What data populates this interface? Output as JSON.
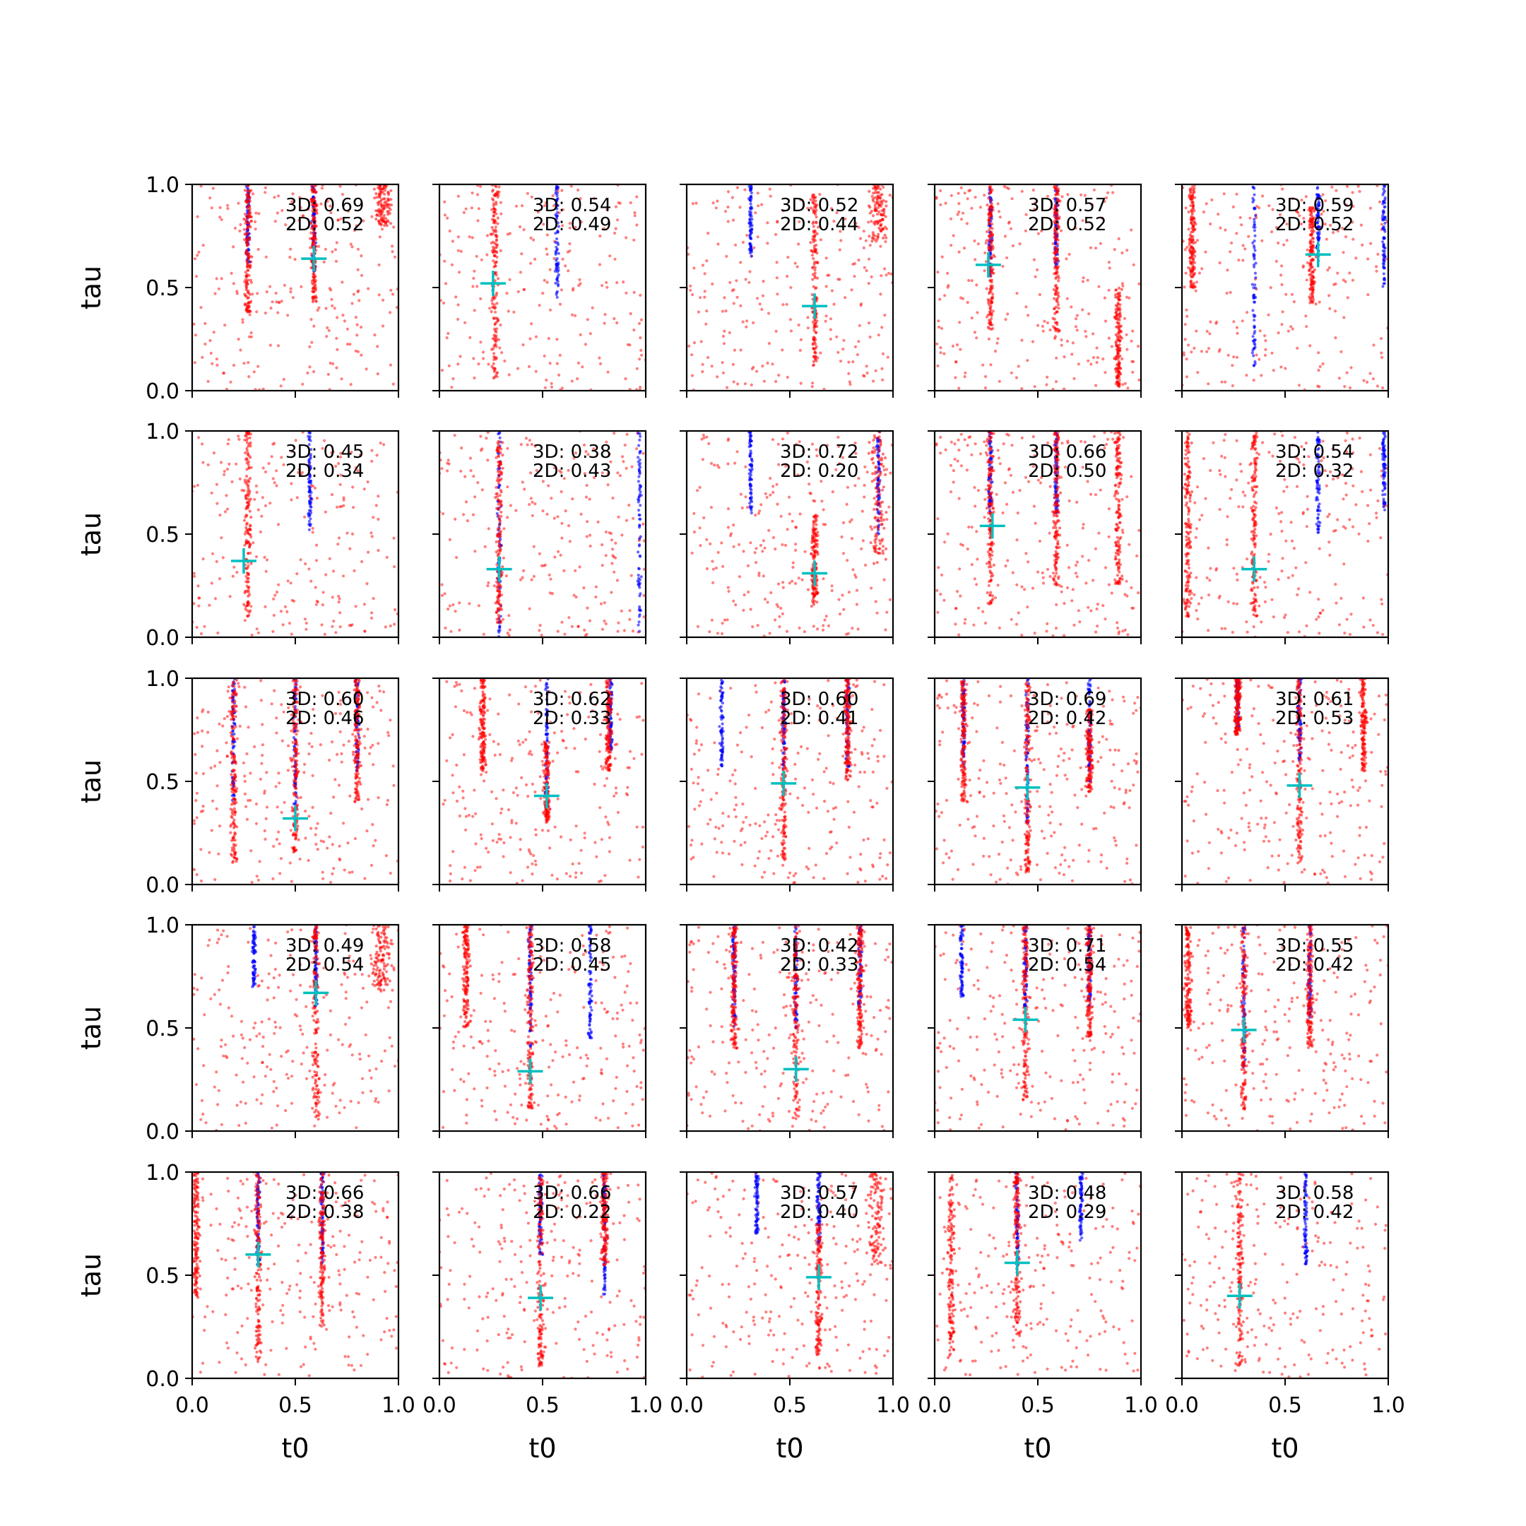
{
  "chart_data": {
    "type": "scatter",
    "layout": "5x5 grid of subplots",
    "xlabel": "t0",
    "ylabel": "tau",
    "xlim": [
      0.0,
      1.0
    ],
    "ylim": [
      0.0,
      1.0
    ],
    "xticks": [
      "0.0",
      "0.5",
      "1.0"
    ],
    "yticks": [
      "0.0",
      "0.5",
      "1.0"
    ],
    "grid": false,
    "colors": {
      "series_a": "#ff0000",
      "series_b": "#0000ff",
      "marker": "#00bfbf"
    },
    "marker_style": "plus",
    "panels": [
      {
        "row": 1,
        "col": 1,
        "score_3d": "0.69",
        "score_2d": "0.52",
        "marker": [
          0.59,
          0.64
        ],
        "red_bands": [
          [
            0.27,
            0.38,
            1.0
          ],
          [
            0.59,
            0.43,
            1.0
          ]
        ],
        "blue_bands": [
          [
            0.27,
            0.62,
            1.0
          ],
          [
            0.59,
            0.58,
            1.0
          ]
        ],
        "red_cluster": [
          0.92,
          0.8,
          1.0
        ]
      },
      {
        "row": 1,
        "col": 2,
        "score_3d": "0.54",
        "score_2d": "0.49",
        "marker": [
          0.26,
          0.52
        ],
        "red_bands": [
          [
            0.27,
            0.06,
            1.0
          ]
        ],
        "blue_bands": [
          [
            0.57,
            0.45,
            1.0
          ]
        ],
        "red_cluster": null
      },
      {
        "row": 1,
        "col": 3,
        "score_3d": "0.52",
        "score_2d": "0.44",
        "marker": [
          0.62,
          0.41
        ],
        "red_bands": [
          [
            0.62,
            0.12,
            0.95
          ]
        ],
        "blue_bands": [
          [
            0.31,
            0.65,
            1.0
          ]
        ],
        "red_cluster": [
          0.93,
          0.72,
          1.0
        ]
      },
      {
        "row": 1,
        "col": 4,
        "score_3d": "0.57",
        "score_2d": "0.52",
        "marker": [
          0.26,
          0.61
        ],
        "red_bands": [
          [
            0.27,
            0.28,
            1.0
          ],
          [
            0.59,
            0.25,
            1.0
          ],
          [
            0.89,
            0.02,
            0.5
          ]
        ],
        "blue_bands": [
          [
            0.27,
            0.55,
            1.0
          ],
          [
            0.59,
            0.6,
            1.0
          ]
        ],
        "red_cluster": null
      },
      {
        "row": 1,
        "col": 5,
        "score_3d": "0.59",
        "score_2d": "0.52",
        "marker": [
          0.66,
          0.66
        ],
        "red_bands": [
          [
            0.05,
            0.5,
            1.0
          ],
          [
            0.63,
            0.42,
            0.9
          ]
        ],
        "blue_bands": [
          [
            0.35,
            0.12,
            1.0
          ],
          [
            0.66,
            0.62,
            1.0
          ],
          [
            0.98,
            0.5,
            1.0
          ]
        ],
        "red_cluster": null
      },
      {
        "row": 2,
        "col": 1,
        "score_3d": "0.45",
        "score_2d": "0.34",
        "marker": [
          0.25,
          0.37
        ],
        "red_bands": [
          [
            0.27,
            0.1,
            1.0
          ]
        ],
        "blue_bands": [
          [
            0.57,
            0.52,
            1.0
          ]
        ],
        "red_cluster": null
      },
      {
        "row": 2,
        "col": 2,
        "score_3d": "0.38",
        "score_2d": "0.43",
        "marker": [
          0.29,
          0.33
        ],
        "red_bands": [
          [
            0.29,
            0.05,
            0.95
          ]
        ],
        "blue_bands": [
          [
            0.29,
            0.0,
            1.0
          ],
          [
            0.97,
            0.0,
            1.0
          ]
        ],
        "red_cluster": null
      },
      {
        "row": 2,
        "col": 3,
        "score_3d": "0.72",
        "score_2d": "0.20",
        "marker": [
          0.62,
          0.31
        ],
        "red_bands": [
          [
            0.62,
            0.15,
            0.6
          ]
        ],
        "blue_bands": [
          [
            0.31,
            0.6,
            1.0
          ],
          [
            0.93,
            0.5,
            1.0
          ]
        ],
        "red_cluster": [
          0.93,
          0.35,
          1.0
        ]
      },
      {
        "row": 2,
        "col": 4,
        "score_3d": "0.66",
        "score_2d": "0.50",
        "marker": [
          0.28,
          0.54
        ],
        "red_bands": [
          [
            0.27,
            0.15,
            1.0
          ],
          [
            0.59,
            0.25,
            1.0
          ],
          [
            0.89,
            0.25,
            1.0
          ]
        ],
        "blue_bands": [
          [
            0.27,
            0.6,
            1.0
          ],
          [
            0.59,
            0.6,
            1.0
          ]
        ],
        "red_cluster": null
      },
      {
        "row": 2,
        "col": 5,
        "score_3d": "0.54",
        "score_2d": "0.32",
        "marker": [
          0.35,
          0.33
        ],
        "red_bands": [
          [
            0.03,
            0.1,
            1.0
          ],
          [
            0.35,
            0.1,
            1.0
          ]
        ],
        "blue_bands": [
          [
            0.66,
            0.5,
            1.0
          ],
          [
            0.98,
            0.6,
            1.0
          ]
        ],
        "red_cluster": null
      },
      {
        "row": 3,
        "col": 1,
        "score_3d": "0.60",
        "score_2d": "0.46",
        "marker": [
          0.5,
          0.32
        ],
        "red_bands": [
          [
            0.2,
            0.1,
            1.0
          ],
          [
            0.5,
            0.15,
            1.0
          ],
          [
            0.8,
            0.4,
            1.0
          ]
        ],
        "blue_bands": [
          [
            0.2,
            0.4,
            1.0
          ],
          [
            0.5,
            0.35,
            1.0
          ],
          [
            0.8,
            0.55,
            1.0
          ]
        ],
        "red_cluster": null
      },
      {
        "row": 3,
        "col": 2,
        "score_3d": "0.62",
        "score_2d": "0.33",
        "marker": [
          0.52,
          0.43
        ],
        "red_bands": [
          [
            0.21,
            0.55,
            1.0
          ],
          [
            0.52,
            0.3,
            0.7
          ],
          [
            0.82,
            0.55,
            1.0
          ]
        ],
        "blue_bands": [
          [
            0.52,
            0.35,
            1.0
          ],
          [
            0.83,
            0.65,
            1.0
          ]
        ],
        "red_cluster": null
      },
      {
        "row": 3,
        "col": 3,
        "score_3d": "0.60",
        "score_2d": "0.41",
        "marker": [
          0.47,
          0.49
        ],
        "red_bands": [
          [
            0.47,
            0.12,
            1.0
          ],
          [
            0.78,
            0.5,
            1.0
          ]
        ],
        "blue_bands": [
          [
            0.17,
            0.55,
            1.0
          ],
          [
            0.47,
            0.55,
            1.0
          ],
          [
            0.78,
            0.55,
            1.0
          ]
        ],
        "red_cluster": null
      },
      {
        "row": 3,
        "col": 4,
        "score_3d": "0.69",
        "score_2d": "0.42",
        "marker": [
          0.45,
          0.47
        ],
        "red_bands": [
          [
            0.14,
            0.4,
            1.0
          ],
          [
            0.45,
            0.05,
            1.0
          ],
          [
            0.75,
            0.45,
            0.85
          ]
        ],
        "blue_bands": [
          [
            0.14,
            0.55,
            1.0
          ],
          [
            0.45,
            0.3,
            1.0
          ],
          [
            0.75,
            0.5,
            1.0
          ]
        ],
        "red_cluster": null
      },
      {
        "row": 3,
        "col": 5,
        "score_3d": "0.61",
        "score_2d": "0.53",
        "marker": [
          0.57,
          0.48
        ],
        "red_bands": [
          [
            0.27,
            0.72,
            1.0
          ],
          [
            0.57,
            0.1,
            1.0
          ],
          [
            0.88,
            0.55,
            1.0
          ]
        ],
        "blue_bands": [
          [
            0.27,
            0.75,
            1.0
          ],
          [
            0.57,
            0.6,
            1.0
          ]
        ],
        "red_cluster": null
      },
      {
        "row": 4,
        "col": 1,
        "score_3d": "0.49",
        "score_2d": "0.54",
        "marker": [
          0.6,
          0.67
        ],
        "red_bands": [
          [
            0.6,
            0.05,
            1.0
          ]
        ],
        "blue_bands": [
          [
            0.3,
            0.7,
            1.0
          ],
          [
            0.6,
            0.6,
            1.0
          ]
        ],
        "red_cluster": [
          0.92,
          0.68,
          1.0
        ]
      },
      {
        "row": 4,
        "col": 2,
        "score_3d": "0.58",
        "score_2d": "0.45",
        "marker": [
          0.44,
          0.29
        ],
        "red_bands": [
          [
            0.13,
            0.5,
            1.0
          ],
          [
            0.44,
            0.1,
            1.0
          ]
        ],
        "blue_bands": [
          [
            0.44,
            0.4,
            1.0
          ],
          [
            0.73,
            0.45,
            1.0
          ]
        ],
        "red_cluster": null
      },
      {
        "row": 4,
        "col": 3,
        "score_3d": "0.42",
        "score_2d": "0.33",
        "marker": [
          0.53,
          0.3
        ],
        "red_bands": [
          [
            0.23,
            0.4,
            1.0
          ],
          [
            0.53,
            0.05,
            1.0
          ],
          [
            0.84,
            0.4,
            1.0
          ]
        ],
        "blue_bands": [
          [
            0.23,
            0.5,
            1.0
          ],
          [
            0.53,
            0.5,
            1.0
          ],
          [
            0.84,
            0.6,
            1.0
          ]
        ],
        "red_cluster": null
      },
      {
        "row": 4,
        "col": 4,
        "score_3d": "0.71",
        "score_2d": "0.54",
        "marker": [
          0.44,
          0.54
        ],
        "red_bands": [
          [
            0.44,
            0.15,
            1.0
          ],
          [
            0.75,
            0.45,
            1.0
          ]
        ],
        "blue_bands": [
          [
            0.13,
            0.65,
            1.0
          ],
          [
            0.44,
            0.6,
            1.0
          ],
          [
            0.75,
            0.6,
            1.0
          ]
        ],
        "red_cluster": null
      },
      {
        "row": 4,
        "col": 5,
        "score_3d": "0.55",
        "score_2d": "0.42",
        "marker": [
          0.3,
          0.49
        ],
        "red_bands": [
          [
            0.03,
            0.5,
            1.0
          ],
          [
            0.3,
            0.1,
            1.0
          ],
          [
            0.62,
            0.4,
            1.0
          ]
        ],
        "blue_bands": [
          [
            0.3,
            0.3,
            1.0
          ],
          [
            0.62,
            0.55,
            1.0
          ]
        ],
        "red_cluster": null
      },
      {
        "row": 5,
        "col": 1,
        "score_3d": "0.66",
        "score_2d": "0.38",
        "marker": [
          0.32,
          0.6
        ],
        "red_bands": [
          [
            0.02,
            0.4,
            1.0
          ],
          [
            0.32,
            0.08,
            1.0
          ],
          [
            0.63,
            0.25,
            1.0
          ]
        ],
        "blue_bands": [
          [
            0.32,
            0.55,
            1.0
          ],
          [
            0.63,
            0.55,
            1.0
          ]
        ],
        "red_cluster": null
      },
      {
        "row": 5,
        "col": 2,
        "score_3d": "0.66",
        "score_2d": "0.22",
        "marker": [
          0.49,
          0.39
        ],
        "red_bands": [
          [
            0.49,
            0.05,
            1.0
          ],
          [
            0.8,
            0.55,
            1.0
          ]
        ],
        "blue_bands": [
          [
            0.49,
            0.6,
            1.0
          ],
          [
            0.8,
            0.4,
            1.0
          ]
        ],
        "red_cluster": null
      },
      {
        "row": 5,
        "col": 3,
        "score_3d": "0.57",
        "score_2d": "0.40",
        "marker": [
          0.64,
          0.49
        ],
        "red_bands": [
          [
            0.64,
            0.1,
            0.75
          ]
        ],
        "blue_bands": [
          [
            0.34,
            0.7,
            1.0
          ],
          [
            0.64,
            0.65,
            1.0
          ]
        ],
        "red_cluster": [
          0.92,
          0.55,
          1.0
        ]
      },
      {
        "row": 5,
        "col": 4,
        "score_3d": "0.48",
        "score_2d": "0.29",
        "marker": [
          0.4,
          0.56
        ],
        "red_bands": [
          [
            0.08,
            0.1,
            1.0
          ],
          [
            0.4,
            0.2,
            1.0
          ]
        ],
        "blue_bands": [
          [
            0.4,
            0.55,
            1.0
          ],
          [
            0.71,
            0.65,
            1.0
          ]
        ],
        "red_cluster": null
      },
      {
        "row": 5,
        "col": 5,
        "score_3d": "0.58",
        "score_2d": "0.42",
        "marker": [
          0.28,
          0.4
        ],
        "red_bands": [
          [
            0.28,
            0.05,
            1.0
          ]
        ],
        "blue_bands": [
          [
            0.6,
            0.55,
            1.0
          ]
        ],
        "red_cluster": null
      }
    ]
  }
}
